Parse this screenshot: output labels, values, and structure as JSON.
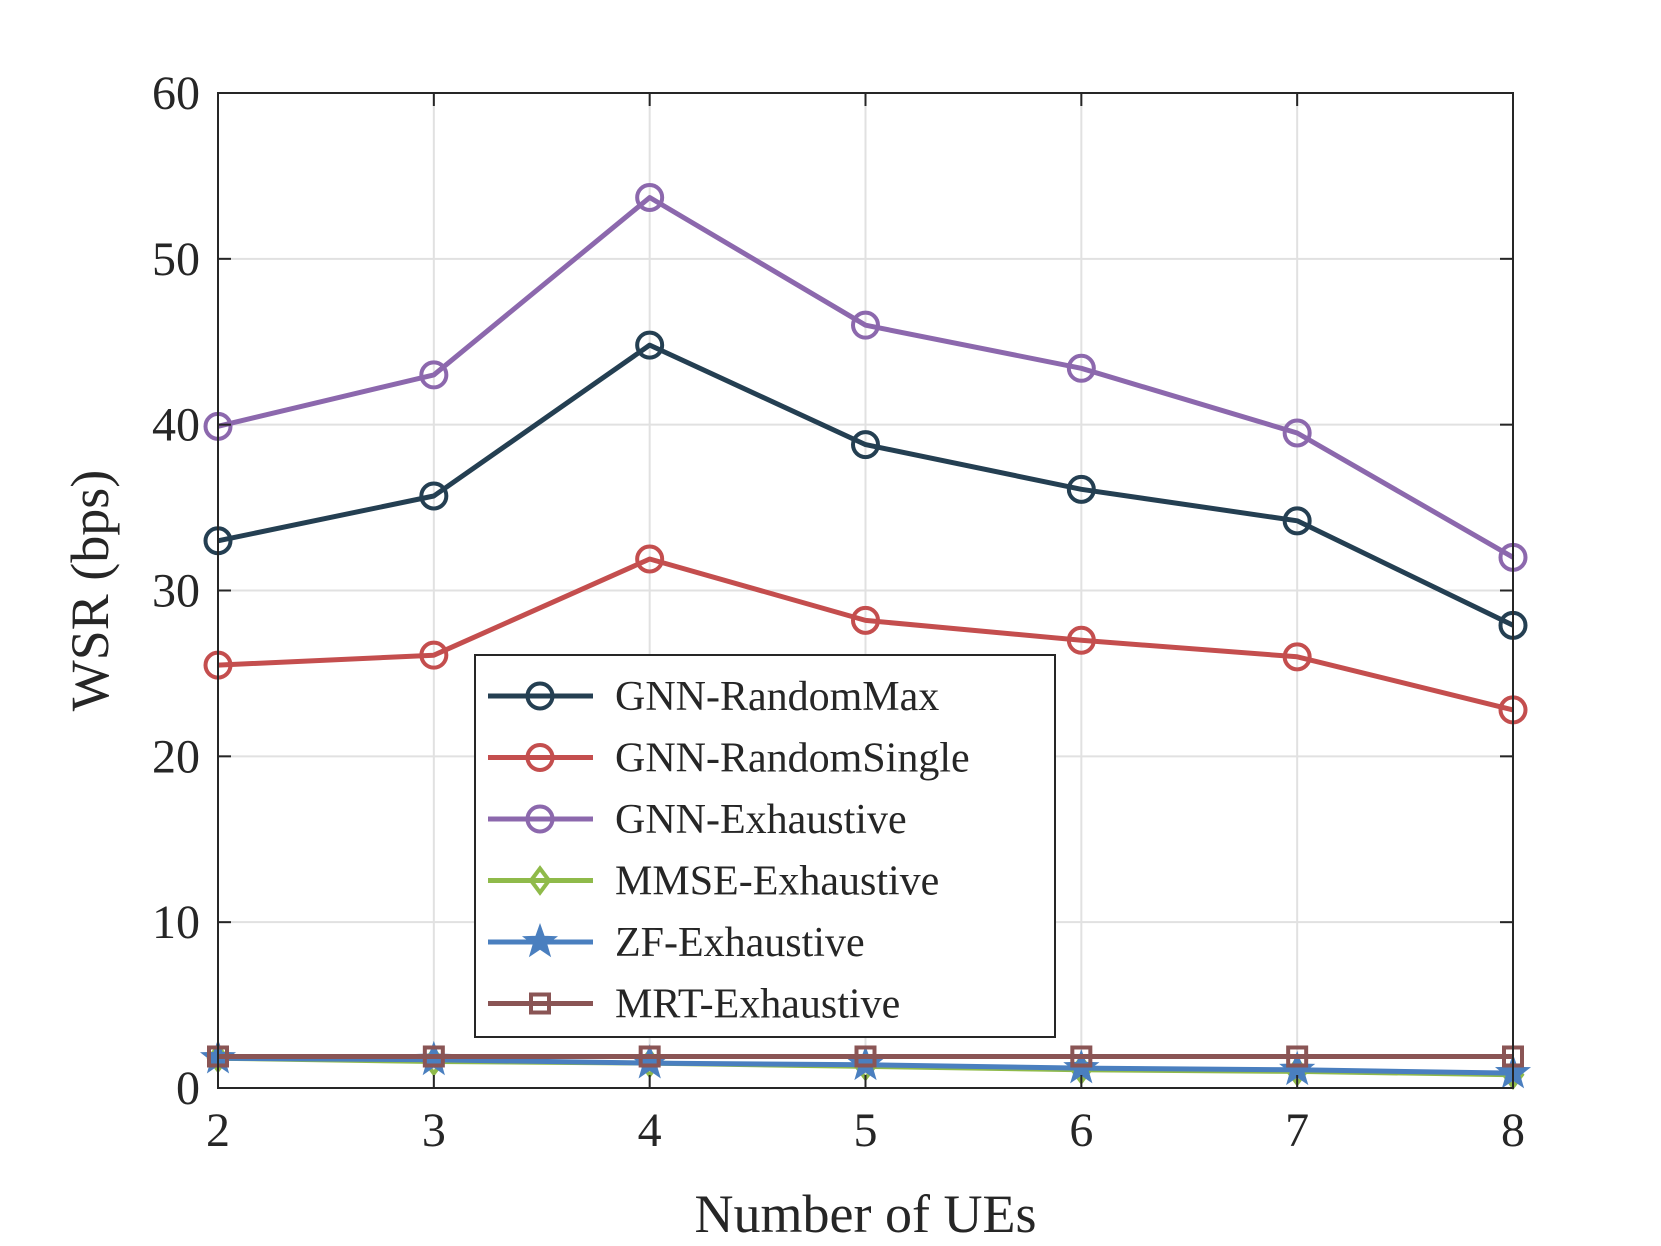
{
  "chart_data": {
    "type": "line",
    "title": "",
    "xlabel": "Number of UEs",
    "ylabel": "WSR (bps)",
    "x": [
      2,
      3,
      4,
      5,
      6,
      7,
      8
    ],
    "xlim": [
      2,
      8
    ],
    "ylim": [
      0,
      60
    ],
    "xticks": [
      2,
      3,
      4,
      5,
      6,
      7,
      8
    ],
    "yticks": [
      0,
      10,
      20,
      30,
      40,
      50,
      60
    ],
    "grid": true,
    "legend_position": "center",
    "series": [
      {
        "name": "GNN-RandomMax",
        "color": "#243f52",
        "marker": "circle",
        "values": [
          33.0,
          35.7,
          44.8,
          38.8,
          36.1,
          34.2,
          27.9
        ]
      },
      {
        "name": "GNN-RandomSingle",
        "color": "#c44e4e",
        "marker": "circle",
        "values": [
          25.5,
          26.1,
          31.9,
          28.2,
          27.0,
          26.0,
          22.8
        ]
      },
      {
        "name": "GNN-Exhaustive",
        "color": "#8c68ad",
        "marker": "circle",
        "values": [
          39.9,
          43.0,
          53.7,
          46.0,
          43.4,
          39.5,
          32.0
        ]
      },
      {
        "name": "MMSE-Exhaustive",
        "color": "#8fba4a",
        "marker": "diamond",
        "values": [
          1.8,
          1.6,
          1.5,
          1.3,
          1.1,
          1.0,
          0.8
        ]
      },
      {
        "name": "ZF-Exhaustive",
        "color": "#4a7fbf",
        "marker": "star",
        "values": [
          1.8,
          1.7,
          1.5,
          1.4,
          1.2,
          1.1,
          0.9
        ]
      },
      {
        "name": "MRT-Exhaustive",
        "color": "#8a5555",
        "marker": "square",
        "values": [
          1.9,
          1.9,
          1.9,
          1.9,
          1.9,
          1.9,
          1.9
        ]
      }
    ]
  }
}
